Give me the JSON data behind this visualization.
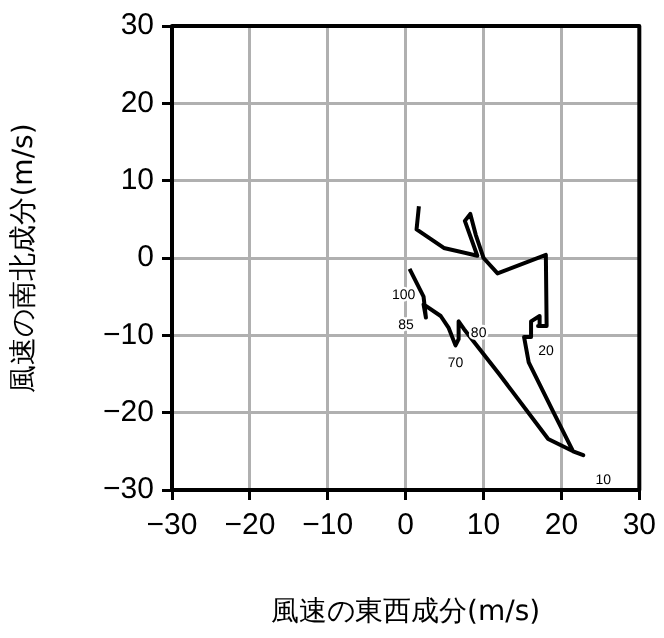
{
  "chart_data": {
    "type": "line",
    "xlabel": "風速の東西成分(m/s)",
    "ylabel": "風速の南北成分(m/s)",
    "xlim": [
      -30,
      30
    ],
    "ylim": [
      -30,
      30
    ],
    "xticks": [
      -30,
      -20,
      -10,
      0,
      10,
      20,
      30
    ],
    "yticks": [
      -30,
      -20,
      -10,
      0,
      10,
      20,
      30
    ],
    "grid": true,
    "marker": "none",
    "series": [
      {
        "color": "#000000",
        "x": [
          1.7,
          1.4,
          4.9,
          9.2,
          7.6,
          8.3,
          9,
          10,
          11.8,
          18,
          18.1,
          17,
          17.2,
          16.1,
          16.1,
          15.2,
          15.8,
          19,
          21.5,
          22.8,
          21.5,
          18.3,
          12,
          7.5,
          6.8,
          6.8,
          6.4,
          5.5,
          4.5,
          2.3,
          2.6,
          2.3,
          0.5
        ],
        "values": [
          6.7,
          3.7,
          1.3,
          0.3,
          4.8,
          5.7,
          3,
          0,
          -2,
          0.4,
          -8.8,
          -8.8,
          -7.5,
          -8.2,
          -10.2,
          -10.2,
          -13.5,
          -20,
          -25,
          -25.5,
          -25,
          -23.4,
          -15,
          -9.2,
          -8.2,
          -10.5,
          -11.3,
          -9,
          -7.5,
          -6,
          -7.7,
          -5,
          -1.4
        ]
      }
    ],
    "annotations": [
      {
        "text": "100",
        "x": 2.3,
        "y": -5
      },
      {
        "text": "85",
        "x": 2.6,
        "y": -7.7
      },
      {
        "text": "80",
        "x": 6.8,
        "y": -10.5
      },
      {
        "text": "70",
        "x": 6.4,
        "y": -11.3
      },
      {
        "text": "20",
        "x": 15.2,
        "y": -10.2
      },
      "10"
    ]
  }
}
